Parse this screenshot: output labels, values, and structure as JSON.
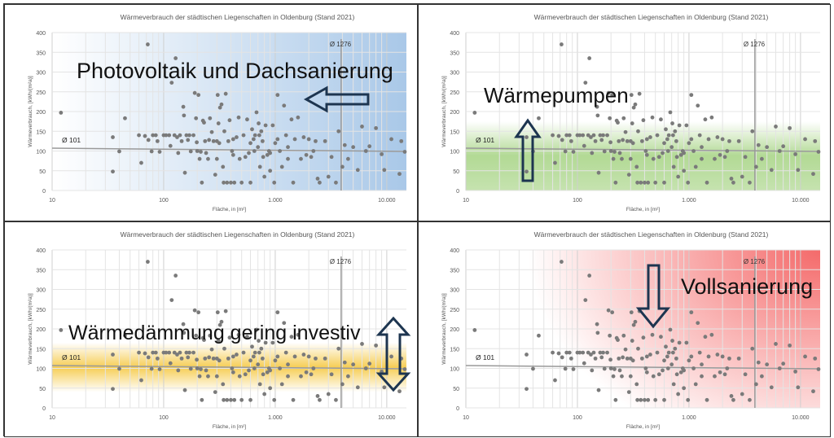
{
  "chart_data": [
    {
      "type": "scatter",
      "title": "Wärmeverbrauch der städtischen Liegenschaften in Oldenburg (Stand 2021)",
      "xlabel": "Fläche, in [m²]",
      "ylabel": "Wärmeverbrauch, [kWh/(m²a)]",
      "xscale": "log",
      "xlim": [
        10,
        15000
      ],
      "ylim": [
        0,
        400
      ],
      "xticks": [
        "10",
        "100",
        "1.000",
        "10.000"
      ],
      "yticks": [
        "0",
        "50",
        "100",
        "150",
        "200",
        "250",
        "300",
        "350",
        "400"
      ],
      "avg_y": 101,
      "avg_y_label": "Ø 101",
      "avg_x_line": 3900,
      "avg_x_label": "Ø 1276",
      "overlay": "Photovoltaik und Dachsanierung",
      "theme": "blue",
      "color": "#a9c8e8"
    },
    {
      "type": "scatter",
      "title": "Wärmeverbrauch der städtischen Liegenschaften in Oldenburg (Stand 2021)",
      "xlabel": "Fläche, in [m²]",
      "ylabel": "Wärmeverbrauch, [kWh/(m²a)]",
      "xscale": "log",
      "xlim": [
        10,
        15000
      ],
      "ylim": [
        0,
        400
      ],
      "xticks": [
        "10",
        "100",
        "1.000",
        "10.000"
      ],
      "yticks": [
        "0",
        "50",
        "100",
        "150",
        "200",
        "250",
        "300",
        "350",
        "400"
      ],
      "avg_y": 101,
      "avg_y_label": "Ø 101",
      "avg_x_line": 3900,
      "avg_x_label": "Ø 1276",
      "overlay": "Wärmepumpen",
      "theme": "green",
      "color": "#9fd07a"
    },
    {
      "type": "scatter",
      "title": "Wärmeverbrauch der städtischen Liegenschaften in Oldenburg (Stand 2021)",
      "xlabel": "Fläche, in [m²]",
      "ylabel": "Wärmeverbrauch, [kWh/(m²a)]",
      "xscale": "log",
      "xlim": [
        10,
        15000
      ],
      "ylim": [
        0,
        400
      ],
      "xticks": [
        "10",
        "100",
        "1.000",
        "10.000"
      ],
      "yticks": [
        "0",
        "50",
        "100",
        "150",
        "200",
        "250",
        "300",
        "350",
        "400"
      ],
      "avg_y": 101,
      "avg_y_label": "Ø 101",
      "avg_x_line": 3900,
      "avg_x_label": "Ø 1276",
      "overlay": "Wärmedämmung gering investiv",
      "theme": "yellow",
      "color": "#f5c842"
    },
    {
      "type": "scatter",
      "title": "Wärmeverbrauch der städtischen Liegenschaften in Oldenburg (Stand 2021)",
      "xlabel": "Fläche, in [m²]",
      "ylabel": "Wärmeverbrauch, [kWh/(m²a)]",
      "xscale": "log",
      "xlim": [
        10,
        15000
      ],
      "ylim": [
        0,
        400
      ],
      "xticks": [
        "10",
        "100",
        "1.000",
        "10.000"
      ],
      "yticks": [
        "0",
        "50",
        "100",
        "150",
        "200",
        "250",
        "300",
        "350",
        "400"
      ],
      "avg_y": 101,
      "avg_y_label": "Ø 101",
      "avg_x_line": 3900,
      "avg_x_label": "Ø 1276",
      "overlay": "Vollsanierung",
      "theme": "red",
      "color": "#f46a6a"
    }
  ],
  "points": [
    [
      12,
      197
    ],
    [
      35,
      135
    ],
    [
      35,
      48
    ],
    [
      40,
      99
    ],
    [
      45,
      183
    ],
    [
      60,
      140
    ],
    [
      63,
      70
    ],
    [
      68,
      138
    ],
    [
      72,
      370
    ],
    [
      73,
      128
    ],
    [
      78,
      99
    ],
    [
      80,
      140
    ],
    [
      85,
      140
    ],
    [
      88,
      125
    ],
    [
      92,
      98
    ],
    [
      100,
      140
    ],
    [
      105,
      140
    ],
    [
      112,
      140
    ],
    [
      115,
      113
    ],
    [
      118,
      273
    ],
    [
      125,
      140
    ],
    [
      128,
      335
    ],
    [
      132,
      135
    ],
    [
      135,
      95
    ],
    [
      140,
      140
    ],
    [
      145,
      125
    ],
    [
      150,
      212
    ],
    [
      152,
      190
    ],
    [
      155,
      45
    ],
    [
      160,
      140
    ],
    [
      165,
      128
    ],
    [
      170,
      140
    ],
    [
      175,
      99
    ],
    [
      185,
      140
    ],
    [
      190,
      247
    ],
    [
      195,
      183
    ],
    [
      198,
      122
    ],
    [
      200,
      100
    ],
    [
      205,
      242
    ],
    [
      210,
      80
    ],
    [
      215,
      98
    ],
    [
      220,
      20
    ],
    [
      225,
      177
    ],
    [
      230,
      172
    ],
    [
      235,
      125
    ],
    [
      240,
      95
    ],
    [
      250,
      80
    ],
    [
      255,
      128
    ],
    [
      260,
      183
    ],
    [
      270,
      148
    ],
    [
      280,
      125
    ],
    [
      290,
      40
    ],
    [
      300,
      80
    ],
    [
      305,
      242
    ],
    [
      310,
      170
    ],
    [
      315,
      120
    ],
    [
      320,
      210
    ],
    [
      330,
      218
    ],
    [
      340,
      60
    ],
    [
      345,
      20
    ],
    [
      350,
      150
    ],
    [
      360,
      245
    ],
    [
      370,
      20
    ],
    [
      380,
      125
    ],
    [
      390,
      178
    ],
    [
      400,
      20
    ],
    [
      410,
      100
    ],
    [
      420,
      130
    ],
    [
      430,
      20
    ],
    [
      450,
      135
    ],
    [
      470,
      185
    ],
    [
      480,
      80
    ],
    [
      500,
      20
    ],
    [
      520,
      140
    ],
    [
      540,
      85
    ],
    [
      560,
      180
    ],
    [
      580,
      95
    ],
    [
      600,
      20
    ],
    [
      620,
      155
    ],
    [
      640,
      130
    ],
    [
      660,
      140
    ],
    [
      680,
      198
    ],
    [
      700,
      110
    ],
    [
      710,
      170
    ],
    [
      730,
      60
    ],
    [
      750,
      150
    ],
    [
      770,
      125
    ],
    [
      800,
      35
    ],
    [
      820,
      165
    ],
    [
      850,
      90
    ],
    [
      880,
      100
    ],
    [
      900,
      50
    ],
    [
      950,
      165
    ],
    [
      980,
      20
    ],
    [
      1000,
      120
    ],
    [
      1050,
      242
    ],
    [
      1100,
      100
    ],
    [
      1150,
      60
    ],
    [
      1200,
      215
    ],
    [
      1250,
      140
    ],
    [
      1300,
      80
    ],
    [
      1400,
      180
    ],
    [
      1450,
      20
    ],
    [
      1500,
      130
    ],
    [
      1600,
      185
    ],
    [
      1700,
      80
    ],
    [
      1800,
      135
    ],
    [
      1900,
      90
    ],
    [
      2000,
      130
    ],
    [
      2100,
      85
    ],
    [
      2300,
      125
    ],
    [
      2400,
      30
    ],
    [
      2500,
      20
    ],
    [
      2800,
      125
    ],
    [
      3000,
      35
    ],
    [
      3200,
      85
    ],
    [
      3500,
      20
    ],
    [
      3700,
      150
    ],
    [
      4000,
      60
    ],
    [
      4200,
      115
    ],
    [
      4500,
      80
    ],
    [
      5000,
      110
    ],
    [
      5500,
      52
    ],
    [
      6000,
      162
    ],
    [
      6500,
      100
    ],
    [
      7000,
      112
    ],
    [
      8000,
      158
    ],
    [
      9000,
      92
    ],
    [
      9500,
      52
    ],
    [
      11000,
      130
    ],
    [
      13000,
      42
    ],
    [
      13500,
      125
    ],
    [
      14500,
      98
    ],
    [
      600,
      120
    ],
    [
      650,
      100
    ],
    [
      720,
      140
    ],
    [
      780,
      85
    ],
    [
      1050,
      130
    ],
    [
      300,
      125
    ],
    [
      420,
      90
    ],
    [
      1300,
      110
    ],
    [
      2200,
      100
    ],
    [
      900,
      95
    ]
  ]
}
